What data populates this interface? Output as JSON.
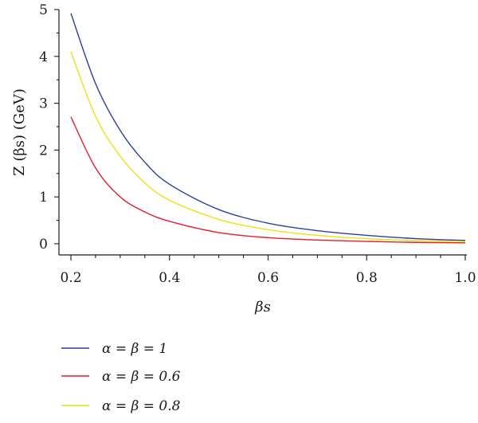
{
  "chart_data": {
    "type": "line",
    "xlabel": "βs",
    "ylabel": "Z (βs) (GeV)",
    "xlim": [
      0.2,
      1.0
    ],
    "ylim": [
      0,
      5
    ],
    "x_ticks": [
      "0.2",
      "0.4",
      "0.6",
      "0.8",
      "1.0"
    ],
    "y_ticks": [
      "0",
      "1",
      "2",
      "3",
      "4",
      "5"
    ],
    "grid": false,
    "legend_position": "bottom-left, below plot",
    "series": [
      {
        "name": "α = β = 1",
        "color": "#2b3f9e",
        "x": [
          0.2,
          0.25,
          0.3,
          0.35,
          0.4,
          0.5,
          0.6,
          0.7,
          0.8,
          0.9,
          1.0
        ],
        "y": [
          4.92,
          3.42,
          2.42,
          1.74,
          1.27,
          0.73,
          0.44,
          0.28,
          0.18,
          0.11,
          0.07
        ]
      },
      {
        "name": "α = β = 0.6",
        "color": "#e0202a",
        "x": [
          0.2,
          0.25,
          0.3,
          0.35,
          0.4,
          0.5,
          0.6,
          0.7,
          0.8,
          0.9,
          1.0
        ],
        "y": [
          2.71,
          1.62,
          1.0,
          0.68,
          0.48,
          0.24,
          0.13,
          0.08,
          0.05,
          0.03,
          0.02
        ]
      },
      {
        "name": "α = β = 0.8",
        "color": "#f0e010",
        "x": [
          0.2,
          0.25,
          0.3,
          0.35,
          0.4,
          0.5,
          0.6,
          0.7,
          0.8,
          0.9,
          1.0
        ],
        "y": [
          4.1,
          2.72,
          1.87,
          1.3,
          0.93,
          0.52,
          0.3,
          0.18,
          0.11,
          0.07,
          0.05
        ]
      }
    ]
  }
}
